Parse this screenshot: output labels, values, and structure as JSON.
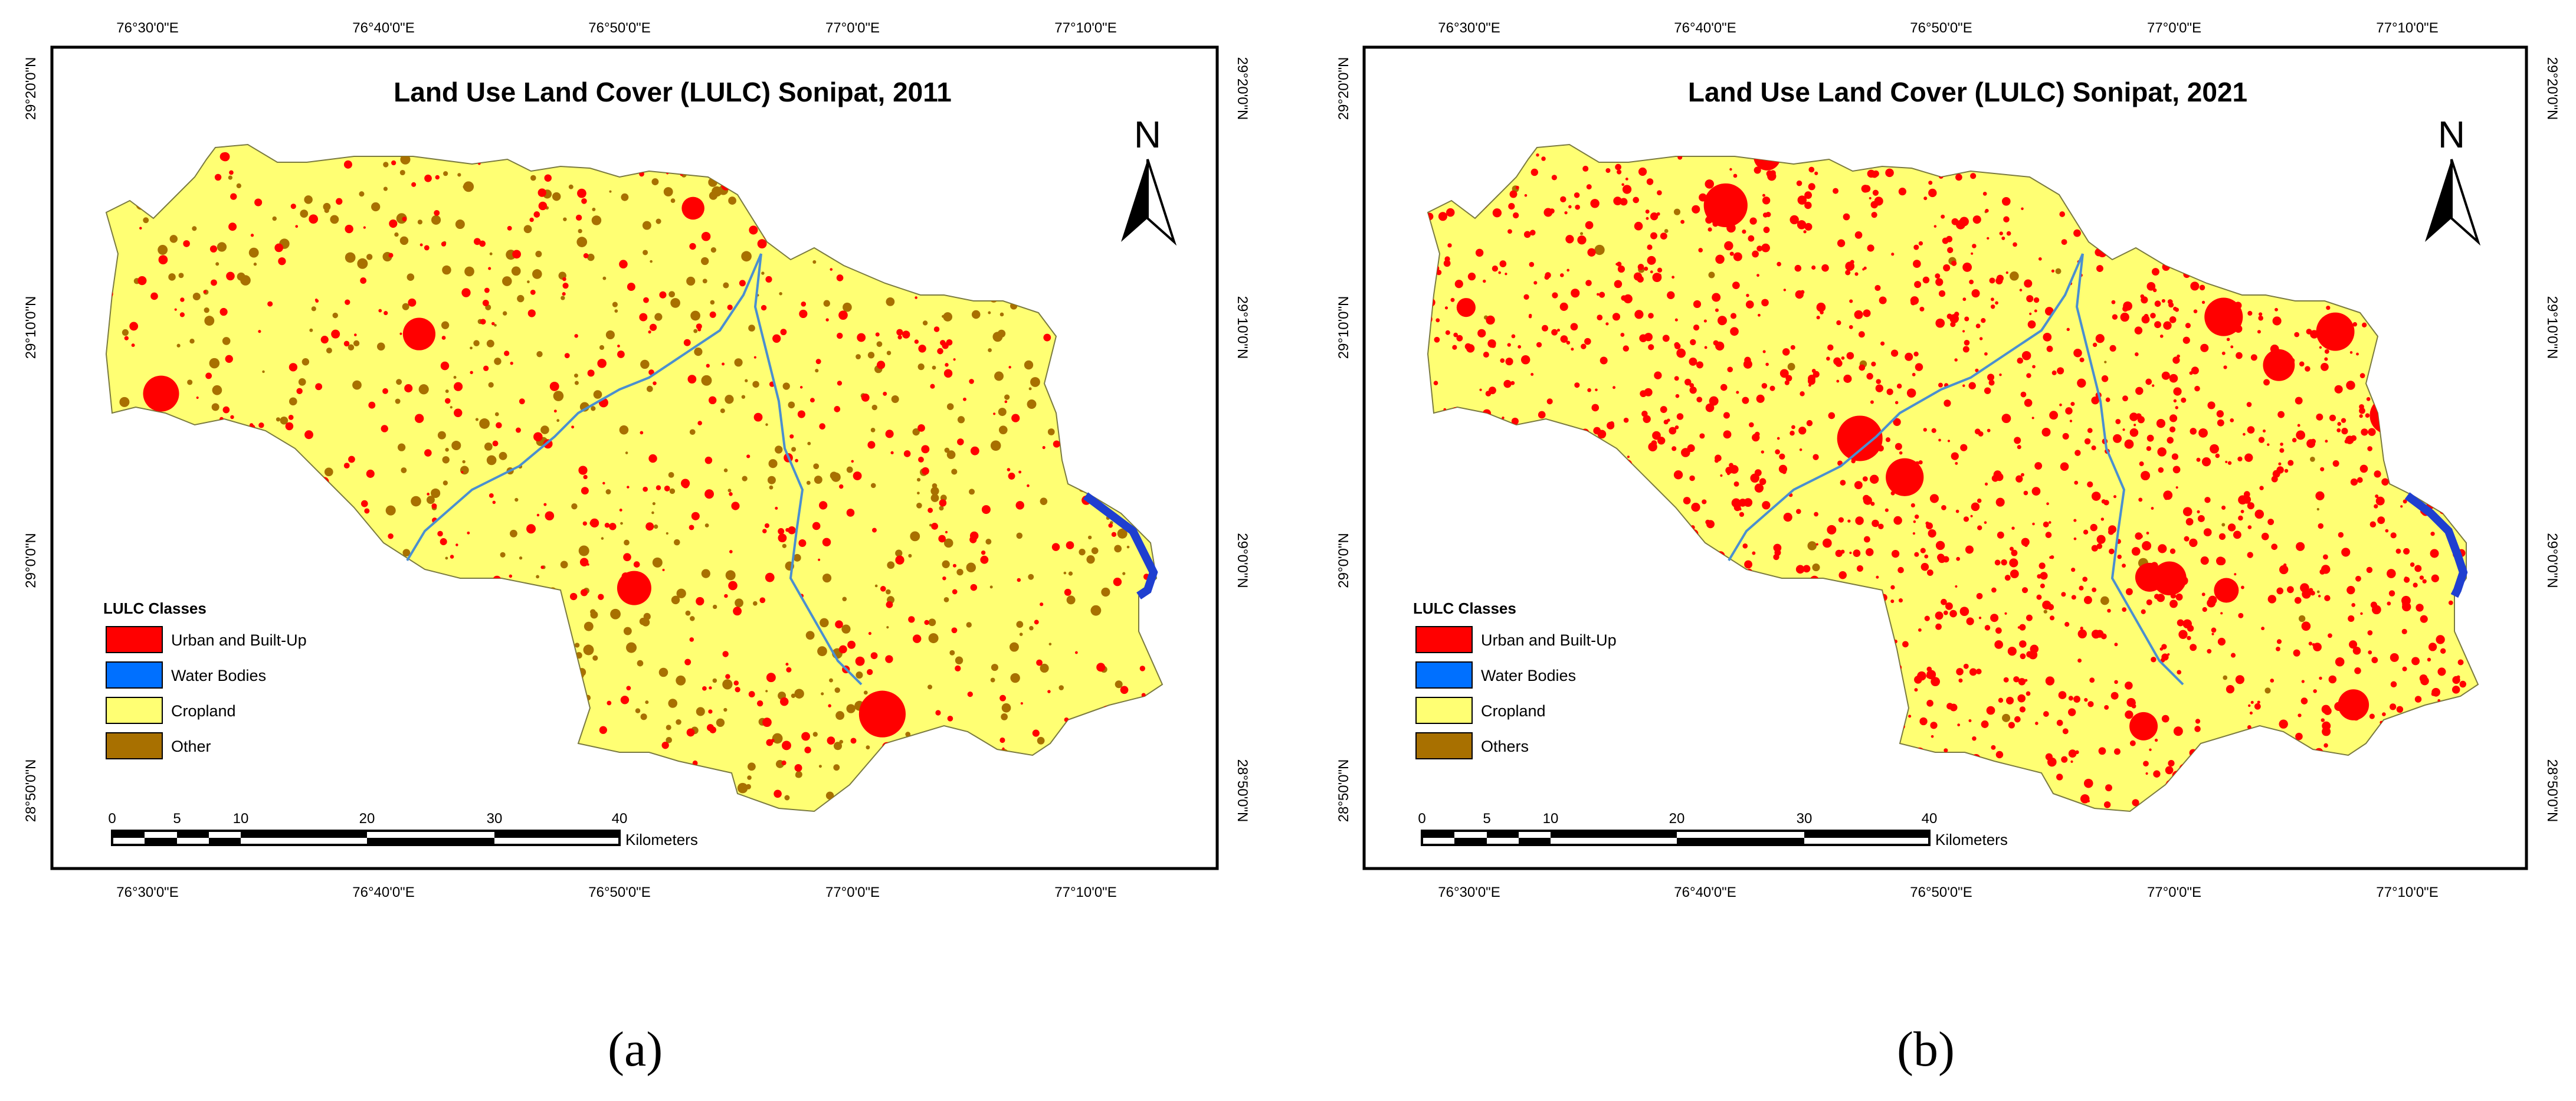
{
  "panels": [
    {
      "id": "a",
      "title": "Land Use Land Cover (LULC) Sonipat, 2011",
      "caption": "(a)",
      "legend_title": "LULC Classes",
      "legend": [
        {
          "label": "Urban and Built-Up",
          "color": "#ff0000"
        },
        {
          "label": "Water Bodies",
          "color": "#0070ff"
        },
        {
          "label": "Cropland",
          "color": "#ffff73"
        },
        {
          "label": "Other",
          "color": "#a87000"
        }
      ],
      "north_label": "N",
      "scale_labels": [
        "0",
        "5",
        "10",
        "20",
        "30",
        "40"
      ],
      "scale_unit": "Kilometers",
      "lon_labels": [
        "76°30'0\"E",
        "76°40'0\"E",
        "76°50'0\"E",
        "77°0'0\"E",
        "77°10'0\"E"
      ],
      "lat_labels": [
        "29°20'0\"N",
        "29°10'0\"N",
        "29°0'0\"N",
        "28°50'0\"N"
      ],
      "urban_level": 0.25,
      "other_level": 0.8
    },
    {
      "id": "b",
      "title": "Land Use Land Cover (LULC) Sonipat, 2021",
      "caption": "(b)",
      "legend_title": "LULC Classes",
      "legend": [
        {
          "label": "Urban and Built-Up",
          "color": "#ff0000"
        },
        {
          "label": "Water Bodies",
          "color": "#0070ff"
        },
        {
          "label": "Cropland",
          "color": "#ffff73"
        },
        {
          "label": "Others",
          "color": "#a87000"
        }
      ],
      "north_label": "N",
      "scale_labels": [
        "0",
        "5",
        "10",
        "20",
        "30",
        "40"
      ],
      "scale_unit": "Kilometers",
      "lon_labels": [
        "76°30'0\"E",
        "76°40'0\"E",
        "76°50'0\"E",
        "77°0'0\"E",
        "77°10'0\"E"
      ],
      "lat_labels": [
        "29°20'0\"N",
        "29°10'0\"N",
        "29°0'0\"N",
        "28°50'0\"N"
      ],
      "urban_level": 0.8,
      "other_level": 0.05
    }
  ]
}
